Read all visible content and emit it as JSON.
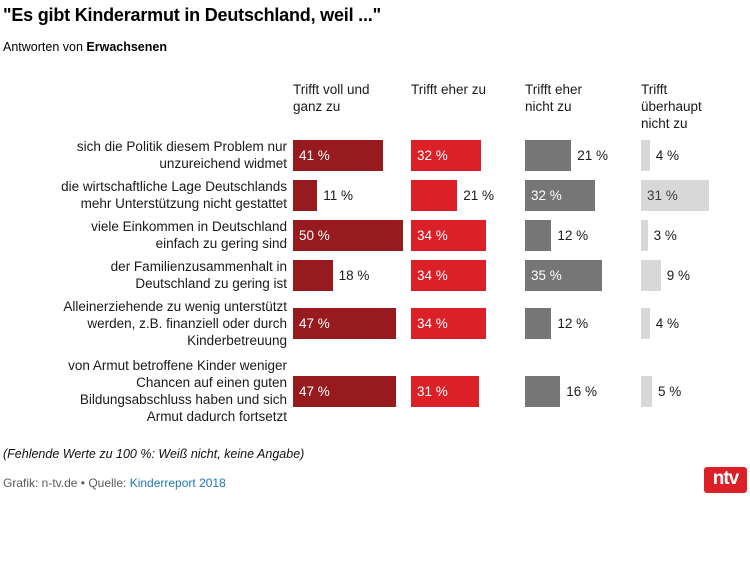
{
  "title": "\"Es gibt Kinderarmut in Deutschland, weil ...\"",
  "subtitle": {
    "prefix": "Antworten von ",
    "bold": "Erwachsenen"
  },
  "footnote": "(Fehlende Werte zu 100 %: Weiß nicht, keine Angabe)",
  "credits": {
    "prefix": "Grafik: n-tv.de • Quelle: ",
    "link": "Kinderreport 2018"
  },
  "logo": {
    "text": "ntv",
    "bg_color": "#db2127"
  },
  "colors": {
    "dark_red": "#971b1e",
    "bright_red": "#db2127",
    "mid_gray": "#767676",
    "light_gray": "#d8d8d8",
    "link_blue": "#2278b5",
    "credits_gray": "#5a5a5a"
  },
  "chart_data": {
    "type": "bar",
    "orientation": "horizontal",
    "title": "\"Es gibt Kinderarmut in Deutschland, weil ...\"",
    "subtitle": "Antworten von Erwachsenen",
    "unit": "%",
    "value_suffix": " %",
    "xlim": [
      0,
      50
    ],
    "grid": false,
    "legend_position": "top-column-headers",
    "categories": [
      "sich die Politik diesem Problem nur\nunzureichend widmet",
      "die wirtschaftliche Lage Deutschlands\nmehr Unterstützung nicht gestattet",
      "viele Einkommen in Deutschland\neinfach zu gering sind",
      "der Familienzusammenhalt in\nDeutschland zu gering ist",
      "Alleinerziehende zu wenig unterstützt\nwerden, z.B. finanziell oder durch\nKinderbetreuung",
      "von Armut betroffene Kinder weniger\nChancen auf einen guten\nBildungsabschluss haben und sich\nArmut dadurch fortsetzt"
    ],
    "series": [
      {
        "name": "Trifft voll und\nganz zu",
        "color": "#971b1e",
        "inside_label_color": "#ffffff",
        "values": [
          41,
          11,
          50,
          18,
          47,
          47
        ]
      },
      {
        "name": "Trifft eher zu",
        "color": "#db2127",
        "inside_label_color": "#ffffff",
        "values": [
          32,
          21,
          34,
          34,
          34,
          31
        ]
      },
      {
        "name": "Trifft eher\nnicht zu",
        "color": "#767676",
        "inside_label_color": "#ffffff",
        "values": [
          21,
          32,
          12,
          35,
          12,
          16
        ]
      },
      {
        "name": "Trifft\nüberhaupt\nnicht zu",
        "color": "#d8d8d8",
        "inside_label_color": "#3c3c3c",
        "values": [
          4,
          31,
          3,
          9,
          4,
          5
        ]
      }
    ]
  }
}
